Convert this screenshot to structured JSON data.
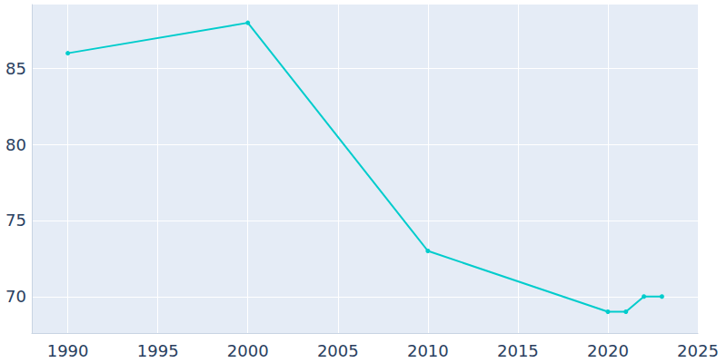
{
  "chart_data": {
    "type": "line",
    "x": [
      1990,
      2000,
      2010,
      2020,
      2021,
      2022,
      2023
    ],
    "values": [
      86,
      88,
      73,
      69,
      69,
      70,
      70
    ],
    "color": "#00cccc",
    "marker": "circle",
    "xlim": [
      1988,
      2025
    ],
    "xticks": [
      1990,
      1995,
      2000,
      2005,
      2010,
      2015,
      2020,
      2025
    ],
    "ylim": [
      67.6,
      89.2
    ],
    "yticks": [
      70,
      75,
      80,
      85
    ],
    "grid": true
  }
}
